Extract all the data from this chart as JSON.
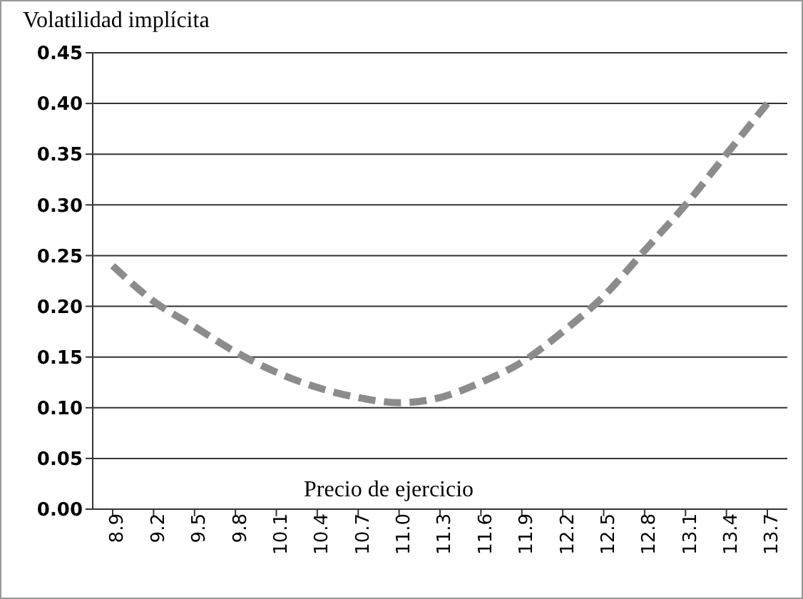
{
  "chart_data": {
    "type": "line",
    "ylabel": "Volatilidad implícita",
    "xlabel": "Precio de ejercicio",
    "categories": [
      "8.9",
      "9.2",
      "9.5",
      "9.8",
      "10.1",
      "10.4",
      "10.7",
      "11.0",
      "11.3",
      "11.6",
      "11.9",
      "12.2",
      "12.5",
      "12.8",
      "13.1",
      "13.4",
      "13.7"
    ],
    "series": [
      {
        "color": "#8c8c8c",
        "values": [
          0.24,
          0.205,
          0.18,
          0.155,
          0.135,
          0.12,
          0.11,
          0.105,
          0.11,
          0.125,
          0.145,
          0.175,
          0.21,
          0.255,
          0.3,
          0.35,
          0.4
        ]
      }
    ],
    "ylim": [
      0,
      0.45
    ],
    "yticks": [
      {
        "value": 0,
        "label": "0.00"
      },
      0.05,
      {
        "value": 0.1,
        "label": "0.10"
      },
      0.15,
      {
        "value": 0.2,
        "label": "0.20"
      },
      0.25,
      {
        "value": 0.3,
        "label": "0.30"
      },
      0.35,
      {
        "value": 0.4,
        "label": "0.40"
      },
      0.45
    ],
    "grid": "y",
    "marker": "none",
    "line_style": "dashed"
  }
}
